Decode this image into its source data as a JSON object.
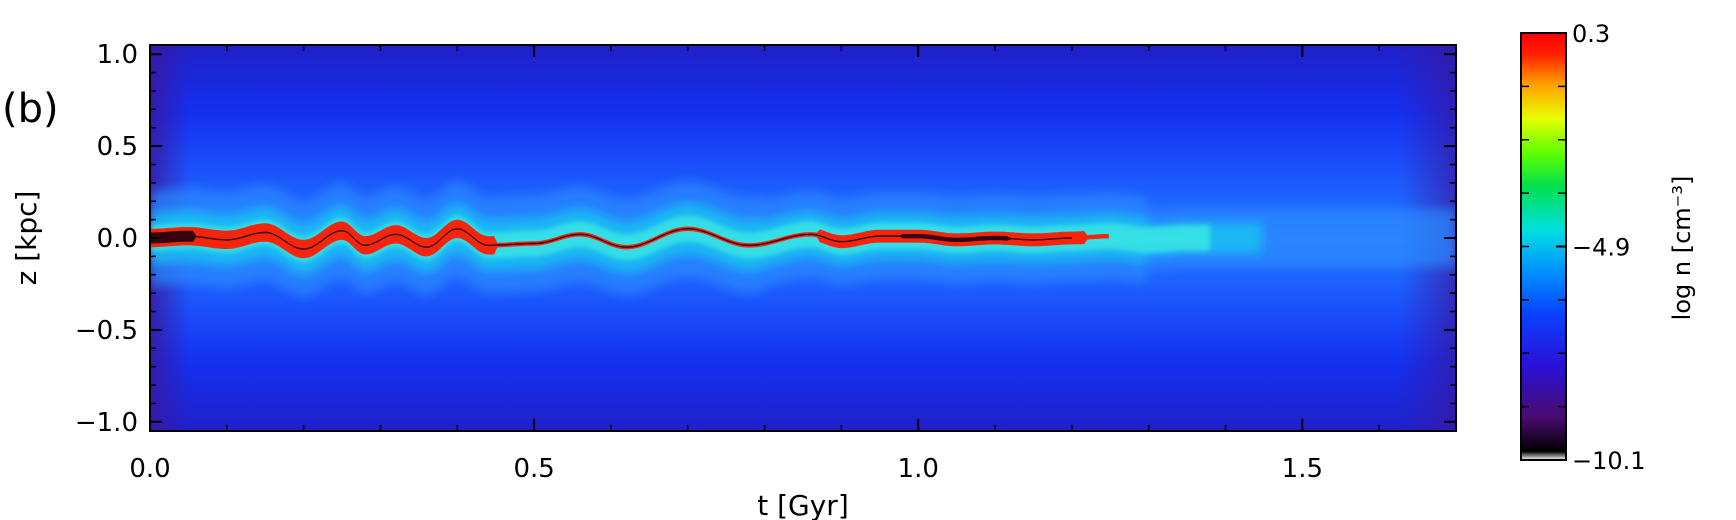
{
  "panel_label": "(b)",
  "chart_data": {
    "type": "heatmap",
    "title": "",
    "xlabel": "t [Gyr]",
    "ylabel": "z [kpc]",
    "xlim": [
      0.0,
      1.7
    ],
    "ylim": [
      -1.05,
      1.05
    ],
    "xticks": [
      0.0,
      0.5,
      1.0,
      1.5
    ],
    "xtick_labels": [
      "0.0",
      "0.5",
      "1.0",
      "1.5"
    ],
    "yticks": [
      1.0,
      0.5,
      0.0,
      -0.5,
      -1.0
    ],
    "ytick_labels": [
      "1.0",
      "0.5",
      "0.0",
      "−0.5",
      "−1.0"
    ],
    "colorbar": {
      "label": "log n [cm⁻³]",
      "range": [
        -10.1,
        0.3
      ],
      "ticks": [
        0.3,
        -4.9,
        -10.1
      ],
      "tick_labels": [
        "0.3",
        "−4.9",
        "−10.1"
      ],
      "colormap": "rainbow"
    },
    "dense_midplane_layer": [
      {
        "t": 0.0,
        "z": 0.0
      },
      {
        "t": 0.05,
        "z": 0.01
      },
      {
        "t": 0.1,
        "z": -0.01
      },
      {
        "t": 0.15,
        "z": 0.03
      },
      {
        "t": 0.2,
        "z": -0.06
      },
      {
        "t": 0.25,
        "z": 0.04
      },
      {
        "t": 0.28,
        "z": -0.04
      },
      {
        "t": 0.32,
        "z": 0.02
      },
      {
        "t": 0.36,
        "z": -0.05
      },
      {
        "t": 0.4,
        "z": 0.05
      },
      {
        "t": 0.44,
        "z": -0.04
      },
      {
        "t": 0.5,
        "z": -0.03
      },
      {
        "t": 0.56,
        "z": 0.02
      },
      {
        "t": 0.62,
        "z": -0.05
      },
      {
        "t": 0.7,
        "z": 0.05
      },
      {
        "t": 0.78,
        "z": -0.04
      },
      {
        "t": 0.86,
        "z": 0.02
      },
      {
        "t": 0.9,
        "z": -0.02
      },
      {
        "t": 0.95,
        "z": 0.01
      },
      {
        "t": 1.0,
        "z": 0.01
      },
      {
        "t": 1.05,
        "z": -0.01
      },
      {
        "t": 1.1,
        "z": 0.0
      },
      {
        "t": 1.15,
        "z": -0.01
      },
      {
        "t": 1.2,
        "z": 0.0
      },
      {
        "t": 1.25,
        "z": 0.01
      },
      {
        "t": 1.3,
        "z": -0.01
      },
      {
        "t": 1.35,
        "z": 0.0
      },
      {
        "t": 1.45,
        "z": 0.0
      },
      {
        "t": 1.55,
        "z": 0.0
      },
      {
        "t": 1.7,
        "z": 0.0
      }
    ],
    "grid": false,
    "legend": "none"
  }
}
